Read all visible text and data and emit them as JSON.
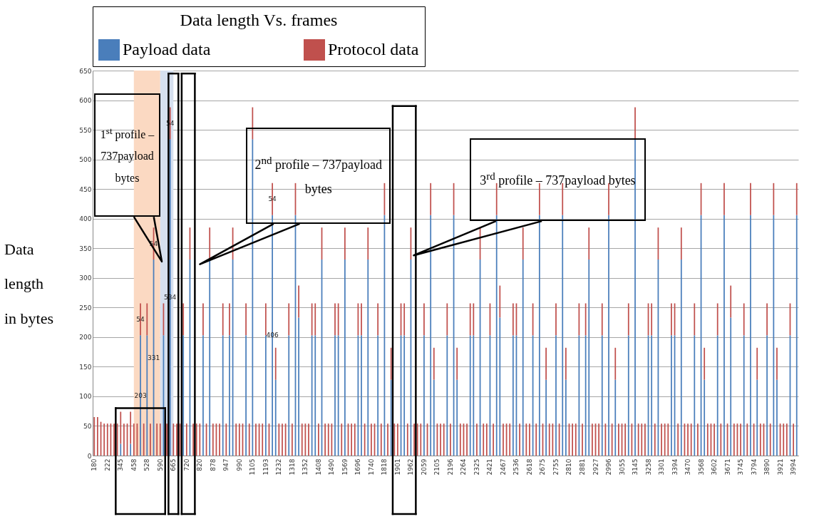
{
  "chart_data": {
    "type": "bar",
    "stacked": true,
    "legend_title": "Data length Vs. frames",
    "ylabel": "Data length in bytes",
    "categories": [
      "180",
      null,
      null,
      null,
      "222",
      null,
      null,
      null,
      "345",
      null,
      null,
      null,
      "458",
      null,
      null,
      null,
      "528",
      null,
      null,
      null,
      "590",
      null,
      null,
      null,
      "665",
      null,
      null,
      null,
      "720",
      null,
      null,
      null,
      "820",
      null,
      null,
      null,
      "878",
      null,
      null,
      null,
      "947",
      null,
      null,
      null,
      "990",
      null,
      null,
      null,
      "1105",
      null,
      null,
      null,
      "1193",
      null,
      null,
      null,
      "1232",
      null,
      null,
      null,
      "1318",
      null,
      null,
      null,
      "1352",
      null,
      null,
      null,
      "1408",
      null,
      null,
      null,
      "1490",
      null,
      null,
      null,
      "1569",
      null,
      null,
      null,
      "1696",
      null,
      null,
      null,
      "1740",
      null,
      null,
      null,
      "1818",
      null,
      null,
      null,
      "1901",
      null,
      null,
      null,
      "1962",
      null,
      null,
      null,
      "2059",
      null,
      null,
      null,
      "2105",
      null,
      null,
      null,
      "2196",
      null,
      null,
      null,
      "2264",
      null,
      null,
      null,
      "2325",
      null,
      null,
      null,
      "2421",
      null,
      null,
      null,
      "2467",
      null,
      null,
      null,
      "2536",
      null,
      null,
      null,
      "2618",
      null,
      null,
      null,
      "2675",
      null,
      null,
      null,
      "2755",
      null,
      null,
      null,
      "2810",
      null,
      null,
      null,
      "2881",
      null,
      null,
      null,
      "2927",
      null,
      null,
      null,
      "2996",
      null,
      null,
      null,
      "3055",
      null,
      null,
      null,
      "3145",
      null,
      null,
      null,
      "3258",
      null,
      null,
      null,
      "3301",
      null,
      null,
      null,
      "3394",
      null,
      null,
      null,
      "3470",
      null,
      null,
      null,
      "3568",
      null,
      null,
      null,
      "3602",
      null,
      null,
      null,
      "3671",
      null,
      null,
      null,
      "3745",
      null,
      null,
      null,
      "3794",
      null,
      null,
      null,
      "3890",
      null,
      null,
      null,
      "3921",
      null,
      null,
      null,
      "3994",
      null
    ],
    "series": [
      {
        "name": "Payload data",
        "color": "#4a7ebb",
        "values": [
          null,
          null,
          null,
          null,
          null,
          null,
          null,
          null,
          20,
          null,
          null,
          20,
          null,
          null,
          203,
          null,
          203,
          null,
          331,
          null,
          null,
          203,
          null,
          534,
          null,
          null,
          null,
          203,
          null,
          331,
          null,
          null,
          null,
          203,
          null,
          331,
          null,
          null,
          null,
          203,
          null,
          203,
          331,
          null,
          null,
          null,
          203,
          null,
          534,
          null,
          null,
          null,
          203,
          null,
          406,
          128,
          null,
          null,
          null,
          203,
          null,
          406,
          233,
          null,
          null,
          null,
          203,
          203,
          null,
          331,
          null,
          null,
          null,
          203,
          203,
          null,
          331,
          null,
          null,
          null,
          203,
          203,
          null,
          331,
          null,
          null,
          203,
          null,
          406,
          null,
          128,
          null,
          null,
          203,
          203,
          null,
          331,
          null,
          null,
          null,
          203,
          null,
          406,
          128,
          null,
          null,
          null,
          203,
          null,
          406,
          128,
          null,
          null,
          null,
          203,
          203,
          null,
          331,
          null,
          null,
          203,
          null,
          406,
          233,
          null,
          null,
          null,
          203,
          203,
          null,
          331,
          null,
          null,
          203,
          null,
          406,
          null,
          128,
          null,
          null,
          203,
          null,
          406,
          128,
          null,
          null,
          null,
          203,
          null,
          203,
          331,
          null,
          null,
          null,
          203,
          null,
          406,
          null,
          128,
          null,
          null,
          null,
          203,
          null,
          534,
          null,
          null,
          null,
          203,
          203,
          null,
          331,
          null,
          null,
          null,
          203,
          203,
          null,
          331,
          null,
          null,
          null,
          203,
          null,
          406,
          128,
          null,
          null,
          null,
          203,
          null,
          406,
          null,
          233,
          null,
          null,
          null,
          203,
          null,
          406,
          null,
          128,
          null,
          null,
          203,
          null,
          406,
          128,
          null,
          null,
          null,
          203,
          null,
          406
        ],
        "value_labels": [
          null,
          null,
          null,
          null,
          null,
          null,
          null,
          null,
          null,
          null,
          null,
          null,
          null,
          null,
          "203",
          null,
          null,
          null,
          "331",
          null,
          null,
          null,
          null,
          "534",
          null,
          null,
          null,
          null,
          null,
          null,
          null,
          null,
          null,
          null,
          null,
          null,
          null,
          null,
          null,
          null,
          null,
          null,
          null,
          null,
          null,
          null,
          null,
          null,
          null,
          null,
          null,
          null,
          null,
          null,
          "406",
          null,
          null,
          null,
          null,
          null,
          null,
          null,
          null,
          null,
          null,
          null,
          null,
          null,
          null,
          null,
          null,
          null,
          null,
          null,
          null,
          null,
          null,
          null,
          null,
          null,
          null,
          null,
          null,
          null,
          null,
          null,
          null,
          null,
          null,
          null,
          null,
          null,
          null,
          null,
          null,
          null,
          null,
          null,
          null,
          null,
          null,
          null,
          null,
          null,
          null,
          null,
          null,
          null,
          null,
          null,
          null,
          null,
          null,
          null,
          null,
          null,
          null,
          null,
          null,
          null,
          null,
          null,
          null,
          null,
          null,
          null,
          null,
          null,
          null,
          null,
          null,
          null,
          null,
          null,
          null,
          null,
          null,
          null,
          null,
          null,
          null,
          null,
          null,
          null,
          null,
          null,
          null,
          null,
          null,
          null,
          null,
          null,
          null,
          null,
          null,
          null,
          null,
          null,
          null,
          null,
          null,
          null,
          null,
          null,
          null,
          null,
          null,
          null,
          null,
          null,
          null,
          null,
          null,
          null,
          null,
          null,
          null,
          null,
          null,
          null,
          null,
          null,
          null,
          null,
          null,
          null,
          null,
          null,
          null,
          null,
          null,
          null,
          null,
          null,
          null,
          null,
          null,
          null,
          null,
          null,
          null,
          null,
          null,
          null,
          null,
          null,
          null,
          null,
          null,
          null,
          null,
          null,
          null,
          null
        ]
      },
      {
        "name": "Protocol data",
        "color": "#c0504d",
        "values": [
          65,
          65,
          57,
          54,
          54,
          54,
          54,
          54,
          54,
          54,
          54,
          54,
          54,
          54,
          54,
          54,
          54,
          54,
          54,
          54,
          54,
          54,
          54,
          54,
          54,
          54,
          54,
          54,
          54,
          54,
          54,
          54,
          54,
          54,
          54,
          54,
          54,
          54,
          54,
          54,
          54,
          54,
          54,
          54,
          54,
          54,
          54,
          54,
          54,
          54,
          54,
          54,
          54,
          54,
          54,
          54,
          54,
          54,
          54,
          54,
          54,
          54,
          54,
          54,
          54,
          54,
          54,
          54,
          54,
          54,
          54,
          54,
          54,
          54,
          54,
          54,
          54,
          54,
          54,
          54,
          54,
          54,
          54,
          54,
          54,
          54,
          54,
          54,
          54,
          54,
          54,
          54,
          54,
          54,
          54,
          54,
          54,
          54,
          54,
          54,
          54,
          54,
          54,
          54,
          54,
          54,
          54,
          54,
          54,
          54,
          54,
          54,
          54,
          54,
          54,
          54,
          54,
          54,
          54,
          54,
          54,
          54,
          54,
          54,
          54,
          54,
          54,
          54,
          54,
          54,
          54,
          54,
          54,
          54,
          54,
          54,
          54,
          54,
          54,
          54,
          54,
          54,
          54,
          54,
          54,
          54,
          54,
          54,
          54,
          54,
          54,
          54,
          54,
          54,
          54,
          54,
          54,
          54,
          54,
          54,
          54,
          54,
          54,
          54,
          54,
          54,
          54,
          54,
          54,
          54,
          54,
          54,
          54,
          54,
          54,
          54,
          54,
          54,
          54,
          54,
          54,
          54,
          54,
          54,
          54,
          54,
          54,
          54,
          54,
          54,
          54,
          54,
          54,
          54,
          54,
          54,
          54,
          54,
          54,
          54,
          54,
          54,
          54,
          54,
          54,
          54,
          54,
          54,
          54,
          54,
          54,
          54,
          54,
          54
        ],
        "value_labels": [
          null,
          null,
          null,
          null,
          null,
          null,
          null,
          null,
          null,
          null,
          null,
          null,
          null,
          null,
          "54",
          null,
          null,
          null,
          "54",
          null,
          null,
          null,
          null,
          "54",
          null,
          null,
          null,
          null,
          null,
          null,
          null,
          null,
          null,
          null,
          null,
          null,
          null,
          null,
          null,
          null,
          null,
          null,
          null,
          null,
          null,
          null,
          null,
          null,
          null,
          null,
          null,
          null,
          null,
          null,
          "54",
          null,
          null,
          null,
          null,
          null,
          null,
          null,
          null,
          null,
          null,
          null,
          null,
          null,
          null,
          null,
          null,
          null,
          null,
          null,
          null,
          null,
          null,
          null,
          null,
          null,
          null,
          null,
          null,
          null,
          null,
          null,
          null,
          null,
          null,
          null,
          null,
          null,
          null,
          null,
          null,
          null,
          null,
          null,
          null,
          null,
          null,
          null,
          null,
          null,
          null,
          null,
          null,
          null,
          null,
          null,
          null,
          null,
          null,
          null,
          null,
          null,
          null,
          null,
          null,
          null,
          null,
          null,
          null,
          null,
          null,
          null,
          null,
          null,
          null,
          null,
          null,
          null,
          null,
          null,
          null,
          null,
          null,
          null,
          null,
          null,
          null,
          null,
          null,
          null,
          null,
          null,
          null,
          null,
          null,
          null,
          null,
          null,
          null,
          null,
          null,
          null,
          null,
          null,
          null,
          null,
          null,
          null,
          null,
          null,
          null,
          null,
          null,
          null,
          null,
          null,
          null,
          null,
          null,
          null,
          null,
          null,
          null,
          null,
          null,
          null,
          null,
          null,
          null,
          null,
          null,
          null,
          null,
          null,
          null,
          null,
          null,
          null,
          null,
          null,
          null,
          null,
          null,
          null,
          null,
          null,
          null,
          null,
          null,
          null,
          null,
          null,
          null,
          null,
          null,
          null,
          null,
          null,
          null,
          null
        ]
      }
    ],
    "ylim": [
      0,
      650
    ],
    "yticks": [
      0,
      50,
      100,
      150,
      200,
      250,
      300,
      350,
      400,
      450,
      500,
      550,
      600,
      650
    ],
    "grid": "y",
    "legend": "top",
    "bands": [
      {
        "axis": "x",
        "from": "458",
        "to": "590",
        "color": "#fbd9c2"
      },
      {
        "axis": "x",
        "from": "590",
        "to": "665",
        "color": "#d6e0ef"
      }
    ],
    "annotations": [
      "1$^{st}$ profile – 737payload bytes",
      "2$^{nd}$ profile – 737payload bytes",
      "3$^{rd}$ profile – 737payload bytes"
    ]
  }
}
